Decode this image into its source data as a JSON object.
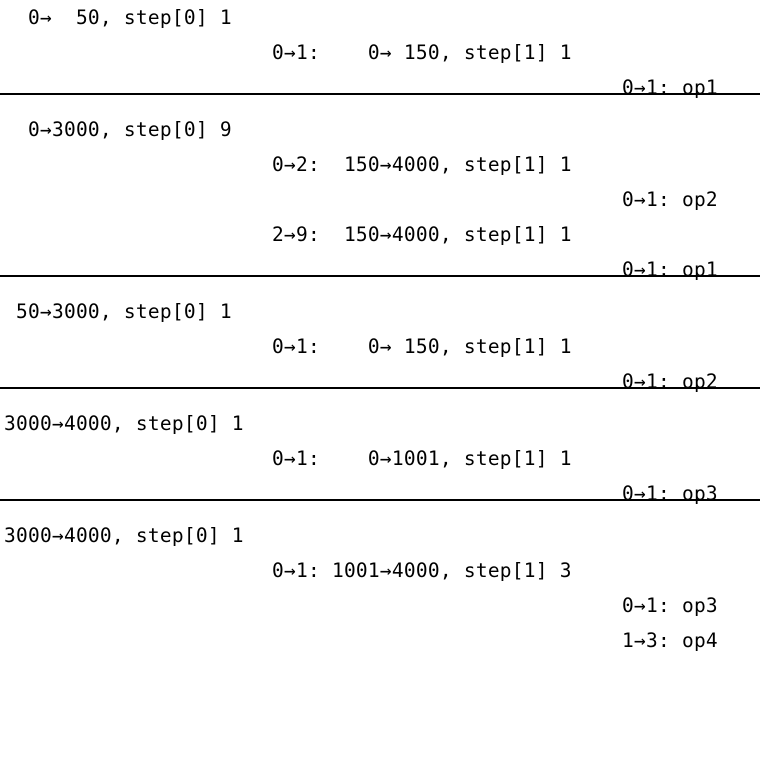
{
  "blocks": [
    {
      "lines": [
        {
          "level": 0,
          "text": "  0→  50, step[0] 1"
        },
        {
          "level": 1,
          "text": "0→1:    0→ 150, step[1] 1"
        },
        {
          "level": 2,
          "text": "0→1: op1"
        }
      ]
    },
    {
      "lines": [
        {
          "level": 0,
          "text": "  0→3000, step[0] 9"
        },
        {
          "level": 1,
          "text": "0→2:  150→4000, step[1] 1"
        },
        {
          "level": 2,
          "text": "0→1: op2"
        },
        {
          "level": 1,
          "text": "2→9:  150→4000, step[1] 1"
        },
        {
          "level": 2,
          "text": "0→1: op1"
        }
      ]
    },
    {
      "lines": [
        {
          "level": 0,
          "text": " 50→3000, step[0] 1"
        },
        {
          "level": 1,
          "text": "0→1:    0→ 150, step[1] 1"
        },
        {
          "level": 2,
          "text": "0→1: op2"
        }
      ]
    },
    {
      "lines": [
        {
          "level": 0,
          "text": "3000→4000, step[0] 1"
        },
        {
          "level": 1,
          "text": "0→1:    0→1001, step[1] 1"
        },
        {
          "level": 2,
          "text": "0→1: op3"
        }
      ]
    },
    {
      "lines": [
        {
          "level": 0,
          "text": "3000→4000, step[0] 1"
        },
        {
          "level": 1,
          "text": "0→1: 1001→4000, step[1] 3"
        },
        {
          "level": 2,
          "text": "0→1: op3"
        },
        {
          "level": 2,
          "text": "1→3: op4"
        }
      ]
    }
  ]
}
